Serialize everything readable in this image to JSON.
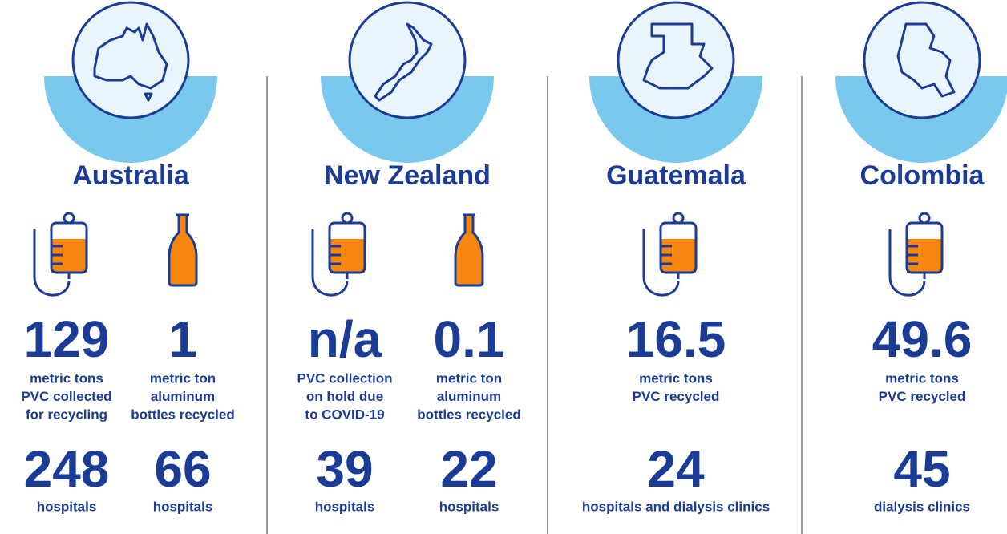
{
  "columns": [
    {
      "country": "Australia",
      "rows": [
        [
          {
            "value": "129",
            "label": [
              "metric tons",
              "PVC collected",
              "for recycling"
            ]
          },
          {
            "value": "1",
            "label": [
              "metric ton",
              "aluminum",
              "bottles recycled"
            ]
          }
        ],
        [
          {
            "value": "248",
            "label": [
              "hospitals"
            ]
          },
          {
            "value": "66",
            "label": [
              "hospitals"
            ]
          }
        ]
      ]
    },
    {
      "country": "New Zealand",
      "rows": [
        [
          {
            "value": "n/a",
            "label": [
              "PVC collection",
              "on hold due",
              "to COVID-19"
            ]
          },
          {
            "value": "0.1",
            "label": [
              "metric ton",
              "aluminum",
              "bottles recycled"
            ]
          }
        ],
        [
          {
            "value": "39",
            "label": [
              "hospitals"
            ]
          },
          {
            "value": "22",
            "label": [
              "hospitals"
            ]
          }
        ]
      ]
    },
    {
      "country": "Guatemala",
      "rows": [
        [
          {
            "value": "16.5",
            "label": [
              "metric tons",
              "PVC recycled"
            ]
          }
        ],
        [
          {
            "value": "24",
            "label": [
              "hospitals and dialysis clinics"
            ]
          }
        ]
      ]
    },
    {
      "country": "Colombia",
      "rows": [
        [
          {
            "value": "49.6",
            "label": [
              "metric tons",
              "PVC recycled"
            ]
          }
        ],
        [
          {
            "value": "45",
            "label": [
              "dialysis clinics"
            ]
          }
        ]
      ]
    }
  ]
}
